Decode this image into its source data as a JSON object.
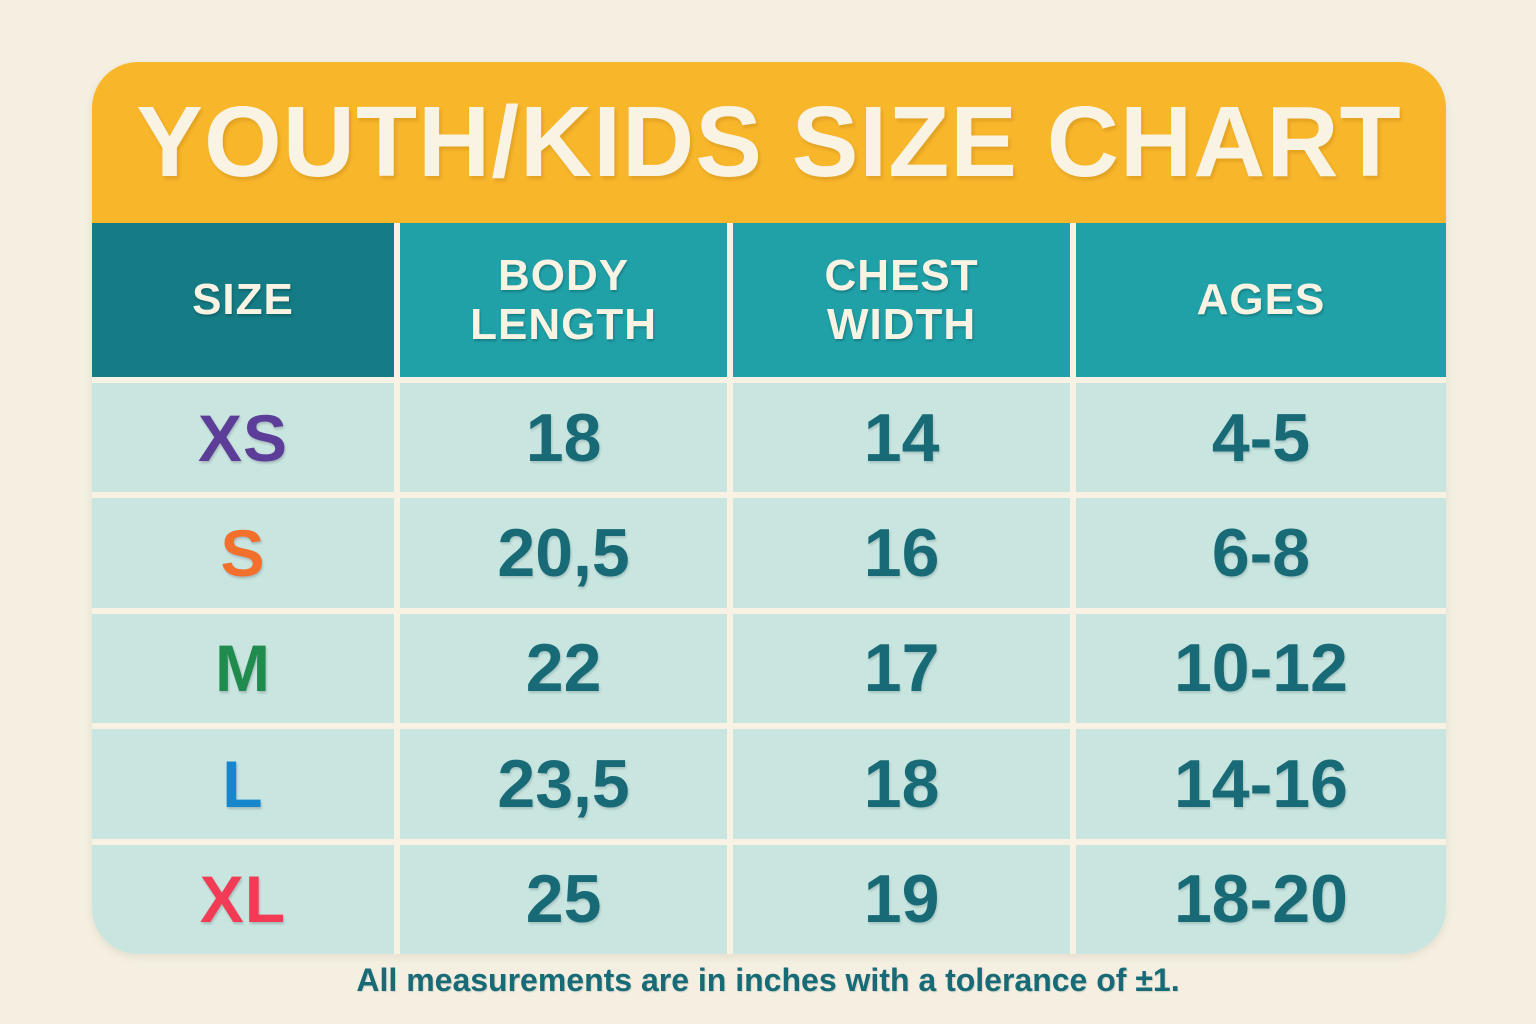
{
  "title": "YOUTH/KIDS SIZE CHART",
  "footer": "All measurements are in inches with a tolerance of ±1.",
  "colors": {
    "background_cream": "#F4EFE1",
    "band_yellow": "#F8B62B",
    "header_teal_dark": "#157B84",
    "header_teal_light": "#20A1A7",
    "cell_mint": "#C9E5E0",
    "value_teal": "#176A76",
    "title_cream": "#F8F3E3",
    "size_xs_purple": "#5C3D97",
    "size_s_orange": "#F2702B",
    "size_m_green": "#1F8C4D",
    "size_l_blue": "#1786CC",
    "size_xl_red": "#F23B55"
  },
  "table": {
    "headers": [
      "SIZE",
      "BODY LENGTH",
      "CHEST WIDTH",
      "AGES"
    ],
    "rows": [
      {
        "size": "XS",
        "size_color": "#5C3D97",
        "body_length": "18",
        "chest_width": "14",
        "ages": "4-5"
      },
      {
        "size": "S",
        "size_color": "#F2702B",
        "body_length": "20,5",
        "chest_width": "16",
        "ages": "6-8"
      },
      {
        "size": "M",
        "size_color": "#1F8C4D",
        "body_length": "22",
        "chest_width": "17",
        "ages": "10-12"
      },
      {
        "size": "L",
        "size_color": "#1786CC",
        "body_length": "23,5",
        "chest_width": "18",
        "ages": "14-16"
      },
      {
        "size": "XL",
        "size_color": "#F23B55",
        "body_length": "25",
        "chest_width": "19",
        "ages": "18-20"
      }
    ]
  },
  "chart_data": {
    "type": "table",
    "title": "YOUTH/KIDS SIZE CHART",
    "columns": [
      "SIZE",
      "BODY LENGTH",
      "CHEST WIDTH",
      "AGES"
    ],
    "rows": [
      [
        "XS",
        "18",
        "14",
        "4-5"
      ],
      [
        "S",
        "20,5",
        "16",
        "6-8"
      ],
      [
        "M",
        "22",
        "17",
        "10-12"
      ],
      [
        "L",
        "23,5",
        "18",
        "14-16"
      ],
      [
        "XL",
        "25",
        "19",
        "18-20"
      ]
    ],
    "units": "inches",
    "tolerance": "±1",
    "note": "All measurements are in inches with a tolerance of ±1."
  }
}
